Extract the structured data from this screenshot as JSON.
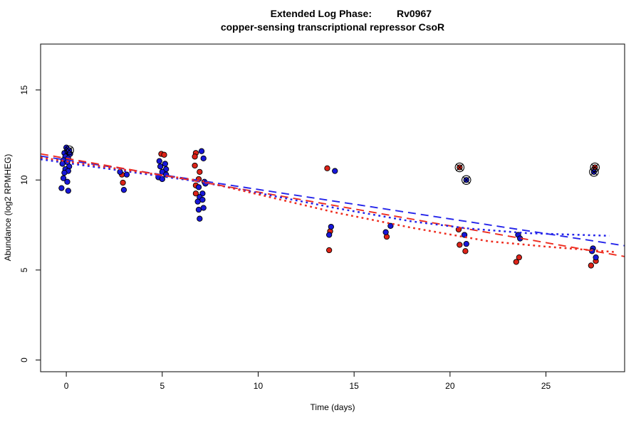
{
  "title": {
    "prefix": "Extended Log Phase:",
    "gene": "Rv0967",
    "line2": "copper-sensing transcriptional repressor CsoR"
  },
  "chart_data": {
    "type": "scatter",
    "title": "Extended Log Phase: Rv0967 / copper-sensing transcriptional repressor CsoR",
    "xlabel": "Time (days)",
    "ylabel": "Abundance (log2 RPMHEG)",
    "x_ticks": [
      0,
      5,
      10,
      15,
      20,
      25
    ],
    "y_ticks": [
      0,
      5,
      10,
      15
    ],
    "xlim": [
      -1.34,
      29.1
    ],
    "ylim": [
      -0.65,
      17.55
    ],
    "grid": false,
    "legend": "none",
    "colors": {
      "red": "#dd2318",
      "blue": "#1717d9",
      "line_red": "#ee2c1f",
      "line_blue": "#2525ea",
      "outlier_ring": "#000000",
      "frame": "#1a1a1a"
    },
    "series": [
      {
        "name": "red-condition-points",
        "color_key": "red",
        "marker": "filled-circle",
        "points": [
          [
            2.9,
            10.3
          ],
          [
            2.95,
            9.85
          ],
          [
            4.95,
            11.45
          ],
          [
            5.1,
            11.4
          ],
          [
            6.75,
            11.5
          ],
          [
            6.7,
            11.3
          ],
          [
            6.7,
            10.8
          ],
          [
            6.95,
            10.45
          ],
          [
            6.9,
            10.05
          ],
          [
            6.75,
            9.7
          ],
          [
            6.75,
            9.25
          ],
          [
            13.6,
            10.65
          ],
          [
            13.75,
            7.15
          ],
          [
            13.7,
            6.1
          ],
          [
            16.7,
            6.85
          ],
          [
            20.45,
            7.25
          ],
          [
            20.5,
            6.4
          ],
          [
            20.8,
            6.05
          ],
          [
            23.6,
            5.7
          ],
          [
            23.45,
            5.45
          ],
          [
            27.6,
            5.5
          ],
          [
            27.35,
            5.25
          ]
        ]
      },
      {
        "name": "blue-condition-points",
        "color_key": "blue",
        "marker": "filled-circle",
        "points": [
          [
            0.0,
            11.8
          ],
          [
            0.1,
            11.6
          ],
          [
            -0.1,
            11.5
          ],
          [
            0.2,
            11.45
          ],
          [
            -0.05,
            11.3
          ],
          [
            0.1,
            11.2
          ],
          [
            -0.15,
            11.1
          ],
          [
            0.05,
            11.0
          ],
          [
            -0.2,
            10.9
          ],
          [
            0.15,
            10.75
          ],
          [
            -0.05,
            10.6
          ],
          [
            0.1,
            10.5
          ],
          [
            -0.1,
            10.4
          ],
          [
            -0.15,
            10.1
          ],
          [
            0.05,
            9.9
          ],
          [
            -0.25,
            9.55
          ],
          [
            0.1,
            9.4
          ],
          [
            2.8,
            10.45
          ],
          [
            3.15,
            10.3
          ],
          [
            3.0,
            9.45
          ],
          [
            4.85,
            11.05
          ],
          [
            5.15,
            10.9
          ],
          [
            4.9,
            10.75
          ],
          [
            5.2,
            10.6
          ],
          [
            5.0,
            10.45
          ],
          [
            5.2,
            10.3
          ],
          [
            4.8,
            10.15
          ],
          [
            5.0,
            10.05
          ],
          [
            7.05,
            11.6
          ],
          [
            7.15,
            11.2
          ],
          [
            7.2,
            9.9
          ],
          [
            7.25,
            9.8
          ],
          [
            6.9,
            9.6
          ],
          [
            7.1,
            9.25
          ],
          [
            6.95,
            9.05
          ],
          [
            7.1,
            8.9
          ],
          [
            6.85,
            8.8
          ],
          [
            7.15,
            8.45
          ],
          [
            6.9,
            8.35
          ],
          [
            6.95,
            7.85
          ],
          [
            14.0,
            10.5
          ],
          [
            13.8,
            7.4
          ],
          [
            13.7,
            6.95
          ],
          [
            16.9,
            7.45
          ],
          [
            16.65,
            7.1
          ],
          [
            20.75,
            6.95
          ],
          [
            20.85,
            6.45
          ],
          [
            23.55,
            6.95
          ],
          [
            23.65,
            6.75
          ],
          [
            27.45,
            6.2
          ],
          [
            27.4,
            6.05
          ],
          [
            27.6,
            5.7
          ]
        ]
      }
    ],
    "outliers_marked": [
      {
        "x": 0.15,
        "y": 11.65,
        "series": "blue"
      },
      {
        "x": 20.5,
        "y": 10.7,
        "series": "red"
      },
      {
        "x": 20.85,
        "y": 10.0,
        "series": "blue"
      },
      {
        "x": 27.55,
        "y": 10.7,
        "series": "red"
      },
      {
        "x": 27.5,
        "y": 10.45,
        "series": "blue"
      }
    ],
    "fit_lines": [
      {
        "name": "blue-dashed-linear-fit",
        "color_key": "line_blue",
        "style": "dashed",
        "points": [
          [
            -1.34,
            11.33
          ],
          [
            29.1,
            6.35
          ]
        ]
      },
      {
        "name": "red-dashed-linear-fit",
        "color_key": "line_red",
        "style": "dashed",
        "points": [
          [
            -1.34,
            11.45
          ],
          [
            29.1,
            5.75
          ]
        ]
      },
      {
        "name": "blue-dotted-smooth-fit",
        "color_key": "line_blue",
        "style": "dotted",
        "points": [
          [
            -1.34,
            11.15
          ],
          [
            7,
            9.9
          ],
          [
            14,
            8.45
          ],
          [
            18,
            7.7
          ],
          [
            21,
            7.3
          ],
          [
            24,
            7.05
          ],
          [
            28.3,
            6.9
          ]
        ]
      },
      {
        "name": "red-dotted-smooth-fit",
        "color_key": "line_red",
        "style": "dotted",
        "points": [
          [
            -1.34,
            11.25
          ],
          [
            7,
            9.95
          ],
          [
            14,
            8.2
          ],
          [
            18,
            7.35
          ],
          [
            22,
            6.6
          ],
          [
            25,
            6.3
          ],
          [
            28.6,
            6.0
          ]
        ]
      }
    ]
  }
}
